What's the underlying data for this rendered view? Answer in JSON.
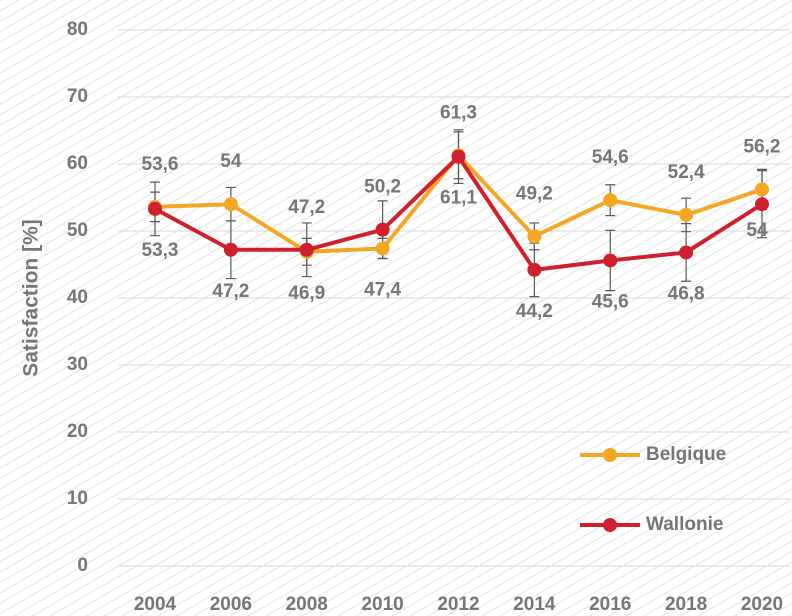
{
  "chart_data": {
    "type": "line",
    "y_label": "Satisfaction [%]",
    "categories": [
      "2004",
      "2006",
      "2008",
      "2010",
      "2012",
      "2014",
      "2016",
      "2018",
      "2020"
    ],
    "series": [
      {
        "name": "Belgique",
        "color": "#f5a623",
        "values": [
          53.6,
          54,
          46.9,
          47.4,
          61.3,
          49.2,
          54.6,
          52.4,
          56.2
        ],
        "value_labels": [
          "53,6",
          "54",
          "46,9",
          "47,4",
          "61,3",
          "49,2",
          "54,6",
          "52,4",
          "56,2"
        ],
        "errors": [
          2.2,
          2.5,
          2,
          1.5,
          3.5,
          2,
          2.3,
          2.5,
          3
        ]
      },
      {
        "name": "Wallonie",
        "color": "#d0202e",
        "values": [
          53.3,
          47.2,
          47.2,
          50.2,
          61.1,
          44.2,
          45.6,
          46.8,
          54
        ],
        "value_labels": [
          "53,3",
          "47,2",
          "47,2",
          "50,2",
          "61,1",
          "44,2",
          "45,6",
          "46,8",
          "54"
        ],
        "errors": [
          4,
          4.3,
          4,
          4.3,
          4,
          4,
          4.5,
          4.3,
          5
        ]
      }
    ],
    "ylim": [
      0,
      80
    ],
    "yticks": [
      0,
      10,
      20,
      30,
      40,
      50,
      60,
      70,
      80
    ],
    "grid": true,
    "legend": "lower right"
  }
}
